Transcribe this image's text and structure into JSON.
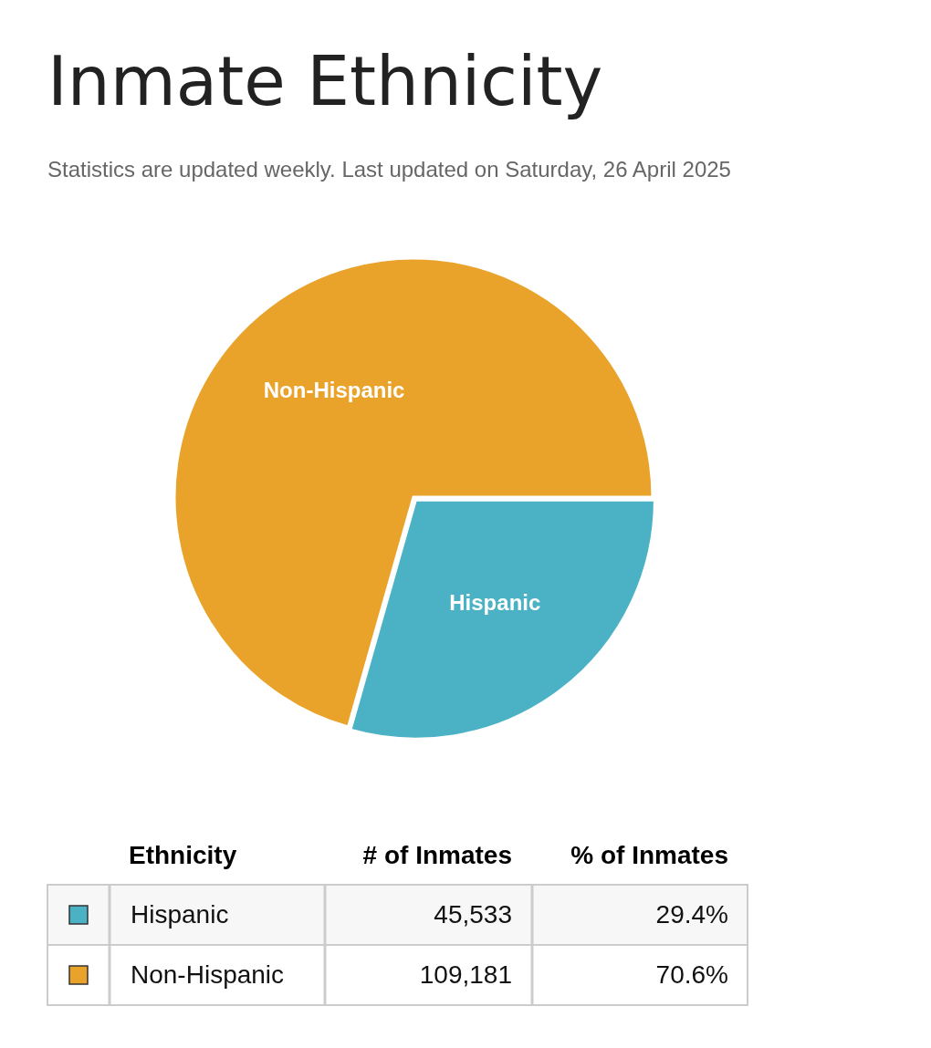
{
  "chart_data": {
    "type": "pie",
    "title": "Inmate Ethnicity",
    "subtitle": "Statistics are updated weekly. Last updated on Saturday, 26 April 2025",
    "legend_title": "Ethnicity",
    "categories": [
      "Hispanic",
      "Non-Hispanic"
    ],
    "values": [
      29.4,
      70.6
    ],
    "colors": [
      "#4bb2c5",
      "#eaa32a"
    ],
    "annotations": [
      "# of Inmates",
      "% of Inmates",
      "45,533",
      "29.4%",
      "109,181",
      "70.6%"
    ]
  }
}
